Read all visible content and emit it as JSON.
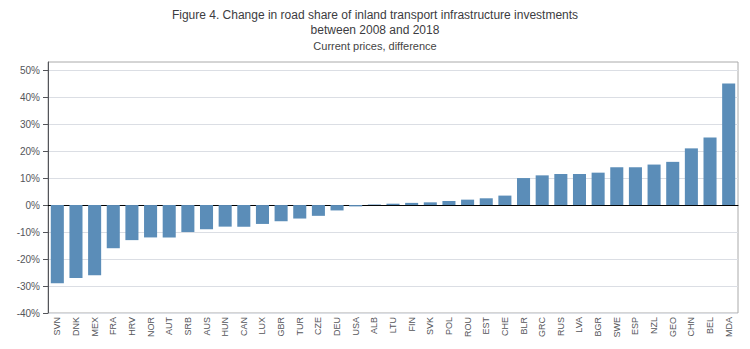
{
  "chart_data": {
    "type": "bar",
    "title": "Figure 4. Change in road share of inland transport infrastructure investments\nbetween 2008 and 2018",
    "subtitle": "Current prices, difference",
    "categories": [
      "SVN",
      "DNK",
      "MEX",
      "FRA",
      "HRV",
      "NOR",
      "AUT",
      "SRB",
      "AUS",
      "HUN",
      "CAN",
      "LUX",
      "GBR",
      "TUR",
      "CZE",
      "DEU",
      "USA",
      "ALB",
      "LTU",
      "FIN",
      "SVK",
      "POL",
      "ROU",
      "EST",
      "CHE",
      "BLR",
      "GRC",
      "RUS",
      "LVA",
      "BGR",
      "SWE",
      "ESP",
      "NZL",
      "GEO",
      "CHN",
      "BEL",
      "MDA"
    ],
    "values": [
      -29,
      -27,
      -26,
      -16,
      -13,
      -12,
      -12,
      -10,
      -9,
      -8,
      -8,
      -7,
      -6,
      -5,
      -4,
      -2,
      -0.5,
      0.2,
      0.5,
      0.8,
      1,
      1.5,
      2,
      2.5,
      3.5,
      10,
      11,
      11.5,
      11.5,
      12,
      14,
      14,
      15,
      16,
      21,
      25,
      45
    ],
    "color": "#5b8db8",
    "ylim": [
      -40,
      53
    ],
    "yticks": [
      {
        "value": -40,
        "label": "-40%"
      },
      {
        "value": -30,
        "label": "-30%"
      },
      {
        "value": -20,
        "label": "-20%"
      },
      {
        "value": -10,
        "label": "-10%"
      },
      {
        "value": 0,
        "label": "0%"
      },
      {
        "value": 10,
        "label": "10%"
      },
      {
        "value": 20,
        "label": "20%"
      },
      {
        "value": 30,
        "label": "30%"
      },
      {
        "value": 40,
        "label": "40%"
      },
      {
        "value": 50,
        "label": "50%"
      }
    ],
    "grid": true
  }
}
